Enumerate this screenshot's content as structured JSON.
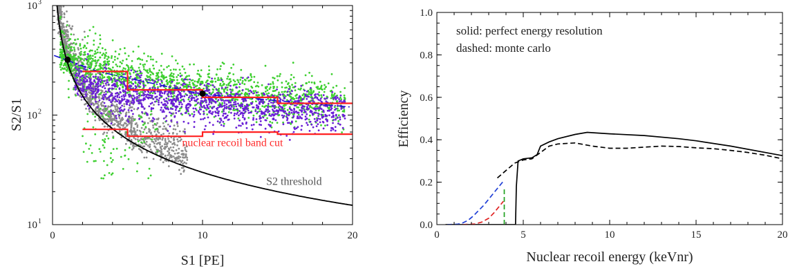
{
  "chart_data": [
    {
      "type": "scatter",
      "xlabel": "S1 [PE]",
      "ylabel": "S2/S1",
      "xlim": [
        0,
        20
      ],
      "ylim": [
        10,
        1000
      ],
      "log_y": true,
      "grid": false,
      "x_ticks": [
        {
          "value": 0,
          "label": "0"
        },
        {
          "value": 10,
          "label": "10"
        },
        {
          "value": 20,
          "label": "20"
        }
      ],
      "y_ticks": [
        {
          "value": 10,
          "label": "10",
          "sup": "1"
        },
        {
          "value": 100,
          "label": "10",
          "sup": "2"
        },
        {
          "value": 1000,
          "label": "10",
          "sup": "3"
        }
      ],
      "annotations": [
        {
          "text": "nuclear recoil band cut",
          "x": 12.0,
          "y": 52,
          "color": "#ff2a2a"
        },
        {
          "text": "S2 threshold",
          "x": 16.1,
          "y": 23,
          "color": "#555555"
        }
      ],
      "series": [
        {
          "color": "#8c8c8c",
          "kind": "points",
          "x_range": [
            0.2,
            9.0
          ],
          "center": "threshold",
          "spread": 0.18
        },
        {
          "color": "#3ecf30",
          "kind": "points",
          "x_range": [
            0.5,
            19.5
          ],
          "center": "green-band",
          "spread": 0.12
        },
        {
          "color": "#6a1fd6",
          "kind": "points",
          "x_range": [
            1.5,
            19.5
          ],
          "center": "purple-band",
          "spread": 0.1
        },
        {
          "color": "#000000",
          "kind": "curve",
          "function": "300/x",
          "x_range": [
            0.3,
            20
          ]
        },
        {
          "color": "#1010cc",
          "kind": "dashed-line",
          "points": [
            [
              0.1,
              350
            ],
            [
              3,
              250
            ],
            [
              10,
              155
            ],
            [
              20,
              118
            ]
          ]
        },
        {
          "color": "#000000",
          "kind": "markers",
          "points": [
            [
              1,
              320
            ],
            [
              10,
              157
            ]
          ]
        },
        {
          "color": "#ff2020",
          "kind": "step",
          "points": [
            [
              2,
              250
            ],
            [
              5,
              250
            ],
            [
              5,
              170
            ],
            [
              10,
              170
            ],
            [
              10,
              145
            ],
            [
              15,
              145
            ],
            [
              15,
              128
            ],
            [
              20,
              128
            ]
          ]
        },
        {
          "color": "#ff2020",
          "kind": "step",
          "points": [
            [
              2,
              74
            ],
            [
              5,
              74
            ],
            [
              5,
              64
            ],
            [
              10,
              64
            ],
            [
              10,
              70
            ],
            [
              15,
              70
            ],
            [
              15,
              67
            ],
            [
              20,
              67
            ]
          ]
        }
      ]
    },
    {
      "type": "line",
      "xlabel": "Nuclear recoil energy (keVnr)",
      "ylabel": "Efficiency",
      "xlim": [
        0,
        20
      ],
      "ylim": [
        0,
        1.0
      ],
      "grid": false,
      "x_ticks": [
        {
          "value": 0,
          "label": "0"
        },
        {
          "value": 5,
          "label": "5"
        },
        {
          "value": 10,
          "label": "10"
        },
        {
          "value": 15,
          "label": "15"
        },
        {
          "value": 20,
          "label": "20"
        }
      ],
      "y_ticks": [
        {
          "value": 0,
          "label": "0.0"
        },
        {
          "value": 0.2,
          "label": "0.2"
        },
        {
          "value": 0.4,
          "label": "0.4"
        },
        {
          "value": 0.6,
          "label": "0.6"
        },
        {
          "value": 0.8,
          "label": "0.8"
        },
        {
          "value": 1.0,
          "label": "1.0"
        }
      ],
      "legend_text": [
        "solid: perfect energy resolution",
        "dashed: monte carlo"
      ],
      "series": [
        {
          "color": "#000000",
          "dash": "solid",
          "x": [
            0.5,
            4.55,
            4.6,
            4.7,
            5,
            5.5,
            5.8,
            6,
            6.5,
            7,
            8,
            8.7,
            10,
            12,
            14,
            15,
            17,
            20
          ],
          "y": [
            0,
            0,
            0.18,
            0.3,
            0.31,
            0.315,
            0.33,
            0.37,
            0.39,
            0.405,
            0.425,
            0.435,
            0.428,
            0.42,
            0.405,
            0.395,
            0.37,
            0.325
          ]
        },
        {
          "color": "#000000",
          "dash": "dashed",
          "x": [
            3.5,
            4,
            4.5,
            5,
            5.5,
            6,
            6.5,
            7,
            8,
            9,
            10,
            11,
            12,
            13,
            14,
            15,
            16,
            17,
            18,
            19,
            20
          ],
          "y": [
            0.22,
            0.255,
            0.29,
            0.305,
            0.31,
            0.34,
            0.37,
            0.38,
            0.385,
            0.37,
            0.36,
            0.36,
            0.365,
            0.37,
            0.368,
            0.362,
            0.358,
            0.35,
            0.34,
            0.327,
            0.31
          ]
        },
        {
          "color": "#1f3fd6",
          "dash": "dashed",
          "x": [
            0.6,
            1.2,
            1.5,
            1.8,
            2.1,
            2.4,
            2.7,
            3.0,
            3.3,
            3.6,
            3.85
          ],
          "y": [
            0,
            0.002,
            0.008,
            0.02,
            0.04,
            0.065,
            0.09,
            0.12,
            0.15,
            0.18,
            0.205
          ]
        },
        {
          "color": "#e02020",
          "dash": "dashed",
          "x": [
            1.5,
            2.2,
            2.6,
            3.0,
            3.3,
            3.6,
            3.85
          ],
          "y": [
            0,
            0.003,
            0.012,
            0.03,
            0.055,
            0.085,
            0.11
          ]
        },
        {
          "color": "#20a020",
          "dash": "dashed",
          "x": [
            3.9,
            3.9
          ],
          "y": [
            0,
            0.17
          ]
        }
      ]
    }
  ]
}
